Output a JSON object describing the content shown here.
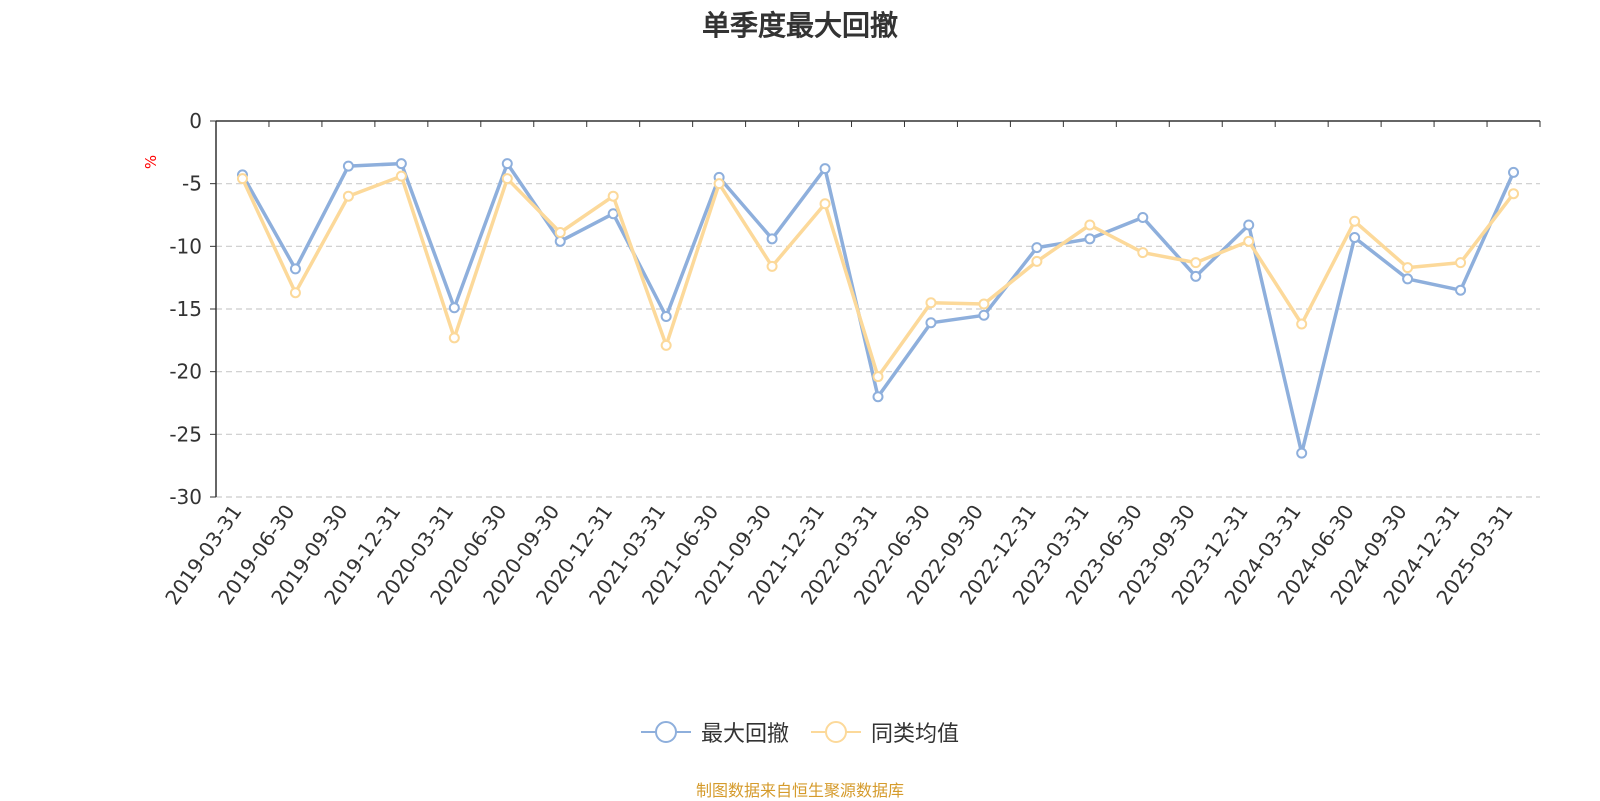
{
  "chart_data": {
    "type": "line",
    "title": "单季度最大回撤",
    "ylabel": "%",
    "ylim": [
      -30,
      0
    ],
    "yticks": [
      0,
      -5,
      -10,
      -15,
      -20,
      -25,
      -30
    ],
    "grid": true,
    "legend_position": "bottom",
    "categories": [
      "2019-03-31",
      "2019-06-30",
      "2019-09-30",
      "2019-12-31",
      "2020-03-31",
      "2020-06-30",
      "2020-09-30",
      "2020-12-31",
      "2021-03-31",
      "2021-06-30",
      "2021-09-30",
      "2021-12-31",
      "2022-03-31",
      "2022-06-30",
      "2022-09-30",
      "2022-12-31",
      "2023-03-31",
      "2023-06-30",
      "2023-09-30",
      "2023-12-31",
      "2024-03-31",
      "2024-06-30",
      "2024-09-30",
      "2024-12-31",
      "2025-03-31"
    ],
    "series": [
      {
        "name": "最大回撤",
        "color": "#8eafdc",
        "values": [
          -4.3,
          -11.8,
          -3.6,
          -3.4,
          -14.9,
          -3.4,
          -9.6,
          -7.4,
          -15.6,
          -4.5,
          -9.4,
          -3.8,
          -22.0,
          -16.1,
          -15.5,
          -10.1,
          -9.4,
          -7.7,
          -12.4,
          -8.3,
          -26.5,
          -9.3,
          -12.6,
          -13.5,
          -4.1
        ]
      },
      {
        "name": "同类均值",
        "color": "#fcd99a",
        "values": [
          -4.6,
          -13.7,
          -6.0,
          -4.4,
          -17.3,
          -4.6,
          -8.9,
          -6.0,
          -17.9,
          -5.0,
          -11.6,
          -6.6,
          -20.4,
          -14.5,
          -14.6,
          -11.2,
          -8.3,
          -10.5,
          -11.3,
          -9.6,
          -16.2,
          -8.0,
          -11.7,
          -11.3,
          -5.8
        ]
      }
    ]
  },
  "source_note": "制图数据来自恒生聚源数据库"
}
